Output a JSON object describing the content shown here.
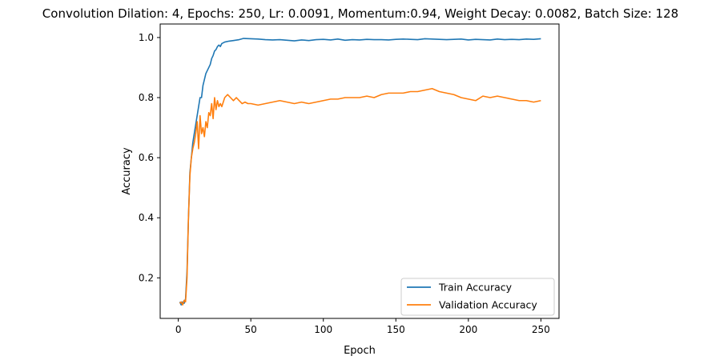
{
  "chart_data": {
    "type": "line",
    "title": "Convolution Dilation: 4, Epochs: 250, Lr: 0.0091, Momentum:0.94, Weight Decay: 0.0082, Batch Size: 128",
    "xlabel": "Epoch",
    "ylabel": "Accuracy",
    "xlim": [
      -12.5,
      262.5
    ],
    "ylim": [
      0.065,
      1.045
    ],
    "xticks": [
      0,
      50,
      100,
      150,
      200,
      250
    ],
    "yticks": [
      0.2,
      0.4,
      0.6,
      0.8,
      1.0
    ],
    "ytick_labels": [
      "0.2",
      "0.4",
      "0.6",
      "0.8",
      "1.0"
    ],
    "grid": false,
    "legend_position": "lower-right",
    "series": [
      {
        "name": "Train Accuracy",
        "color": "#1f77b4",
        "points": [
          [
            1,
            0.12
          ],
          [
            2,
            0.11
          ],
          [
            3,
            0.12
          ],
          [
            4,
            0.115
          ],
          [
            5,
            0.13
          ],
          [
            6,
            0.22
          ],
          [
            7,
            0.4
          ],
          [
            8,
            0.55
          ],
          [
            9,
            0.6
          ],
          [
            10,
            0.65
          ],
          [
            11,
            0.68
          ],
          [
            12,
            0.71
          ],
          [
            13,
            0.74
          ],
          [
            14,
            0.77
          ],
          [
            15,
            0.8
          ],
          [
            16,
            0.8
          ],
          [
            17,
            0.84
          ],
          [
            18,
            0.86
          ],
          [
            19,
            0.88
          ],
          [
            20,
            0.89
          ],
          [
            21,
            0.9
          ],
          [
            22,
            0.91
          ],
          [
            23,
            0.93
          ],
          [
            24,
            0.94
          ],
          [
            25,
            0.955
          ],
          [
            26,
            0.96
          ],
          [
            27,
            0.97
          ],
          [
            28,
            0.975
          ],
          [
            29,
            0.97
          ],
          [
            30,
            0.98
          ],
          [
            32,
            0.985
          ],
          [
            35,
            0.988
          ],
          [
            38,
            0.99
          ],
          [
            42,
            0.993
          ],
          [
            45,
            0.997
          ],
          [
            50,
            0.996
          ],
          [
            55,
            0.995
          ],
          [
            60,
            0.993
          ],
          [
            65,
            0.992
          ],
          [
            70,
            0.993
          ],
          [
            75,
            0.991
          ],
          [
            80,
            0.989
          ],
          [
            85,
            0.992
          ],
          [
            90,
            0.99
          ],
          [
            95,
            0.993
          ],
          [
            100,
            0.994
          ],
          [
            105,
            0.992
          ],
          [
            110,
            0.995
          ],
          [
            115,
            0.991
          ],
          [
            120,
            0.993
          ],
          [
            125,
            0.992
          ],
          [
            130,
            0.994
          ],
          [
            135,
            0.993
          ],
          [
            140,
            0.993
          ],
          [
            145,
            0.992
          ],
          [
            150,
            0.994
          ],
          [
            155,
            0.995
          ],
          [
            160,
            0.994
          ],
          [
            165,
            0.993
          ],
          [
            170,
            0.996
          ],
          [
            175,
            0.995
          ],
          [
            180,
            0.994
          ],
          [
            185,
            0.993
          ],
          [
            190,
            0.994
          ],
          [
            195,
            0.995
          ],
          [
            200,
            0.992
          ],
          [
            205,
            0.994
          ],
          [
            210,
            0.993
          ],
          [
            215,
            0.992
          ],
          [
            220,
            0.995
          ],
          [
            225,
            0.993
          ],
          [
            230,
            0.994
          ],
          [
            235,
            0.993
          ],
          [
            240,
            0.995
          ],
          [
            245,
            0.994
          ],
          [
            250,
            0.996
          ]
        ]
      },
      {
        "name": "Validation Accuracy",
        "color": "#ff7f0e",
        "points": [
          [
            1,
            0.115
          ],
          [
            2,
            0.12
          ],
          [
            3,
            0.11
          ],
          [
            4,
            0.125
          ],
          [
            5,
            0.12
          ],
          [
            6,
            0.2
          ],
          [
            7,
            0.4
          ],
          [
            8,
            0.54
          ],
          [
            9,
            0.6
          ],
          [
            10,
            0.63
          ],
          [
            11,
            0.65
          ],
          [
            12,
            0.68
          ],
          [
            13,
            0.72
          ],
          [
            14,
            0.63
          ],
          [
            15,
            0.74
          ],
          [
            16,
            0.68
          ],
          [
            17,
            0.7
          ],
          [
            18,
            0.67
          ],
          [
            19,
            0.72
          ],
          [
            20,
            0.7
          ],
          [
            21,
            0.75
          ],
          [
            22,
            0.74
          ],
          [
            23,
            0.78
          ],
          [
            24,
            0.73
          ],
          [
            25,
            0.8
          ],
          [
            26,
            0.76
          ],
          [
            27,
            0.79
          ],
          [
            28,
            0.77
          ],
          [
            29,
            0.78
          ],
          [
            30,
            0.77
          ],
          [
            32,
            0.8
          ],
          [
            34,
            0.81
          ],
          [
            36,
            0.8
          ],
          [
            38,
            0.79
          ],
          [
            40,
            0.8
          ],
          [
            42,
            0.79
          ],
          [
            44,
            0.78
          ],
          [
            46,
            0.785
          ],
          [
            48,
            0.78
          ],
          [
            50,
            0.78
          ],
          [
            55,
            0.775
          ],
          [
            60,
            0.78
          ],
          [
            65,
            0.785
          ],
          [
            70,
            0.79
          ],
          [
            75,
            0.785
          ],
          [
            80,
            0.78
          ],
          [
            85,
            0.785
          ],
          [
            90,
            0.78
          ],
          [
            95,
            0.785
          ],
          [
            100,
            0.79
          ],
          [
            105,
            0.795
          ],
          [
            110,
            0.795
          ],
          [
            115,
            0.8
          ],
          [
            120,
            0.8
          ],
          [
            125,
            0.8
          ],
          [
            130,
            0.805
          ],
          [
            135,
            0.8
          ],
          [
            140,
            0.81
          ],
          [
            145,
            0.815
          ],
          [
            150,
            0.815
          ],
          [
            155,
            0.815
          ],
          [
            160,
            0.82
          ],
          [
            165,
            0.82
          ],
          [
            170,
            0.825
          ],
          [
            175,
            0.83
          ],
          [
            180,
            0.82
          ],
          [
            185,
            0.815
          ],
          [
            190,
            0.81
          ],
          [
            195,
            0.8
          ],
          [
            200,
            0.795
          ],
          [
            205,
            0.79
          ],
          [
            210,
            0.805
          ],
          [
            215,
            0.8
          ],
          [
            220,
            0.805
          ],
          [
            225,
            0.8
          ],
          [
            230,
            0.795
          ],
          [
            235,
            0.79
          ],
          [
            240,
            0.79
          ],
          [
            245,
            0.785
          ],
          [
            250,
            0.79
          ]
        ]
      }
    ]
  }
}
